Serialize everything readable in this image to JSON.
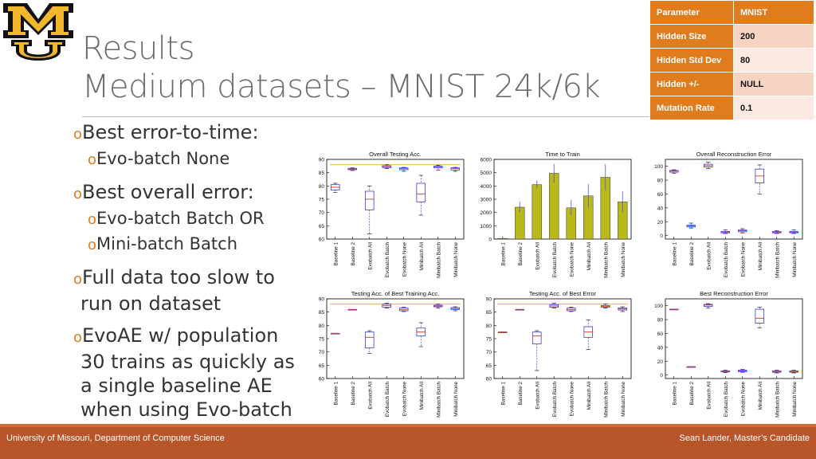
{
  "slide": {
    "title_line1": "Results",
    "title_line2": "Medium datasets – MNIST 24k/6k"
  },
  "param_table": [
    {
      "key": "Parameter",
      "value": "MNIST"
    },
    {
      "key": "Hidden Size",
      "value": "200"
    },
    {
      "key": "Hidden Std Dev",
      "value": "80"
    },
    {
      "key": "Hidden +/-",
      "value": "NULL"
    },
    {
      "key": "Mutation Rate",
      "value": "0.1"
    }
  ],
  "bullets": {
    "b1": "Best error-to-time:",
    "b1a": "Evo-batch None",
    "b2": "Best overall error:",
    "b2a": "Evo-batch Batch OR",
    "b2b": "Mini-batch Batch",
    "b3l1": "Full data too slow to",
    "b3l2": "run on dataset",
    "b4l1": "EvoAE w/ population",
    "b4l2": "30 trains as quickly as",
    "b4l3": "a single baseline AE",
    "b4l4": "when using Evo-batch"
  },
  "footer": {
    "left": "University of Missouri, Department of Computer Science",
    "right": "Sean Lander, Master’s Candidate"
  },
  "colors": {
    "accent": "#e07c1e",
    "footer": "#b8562a",
    "bar": "#b9b91c",
    "box": "#3b3bd6",
    "median": "#e0302a"
  },
  "chart_data": [
    {
      "type": "box",
      "title": "Overall Testing Acc.",
      "categories": [
        "Baseline 1",
        "Baseline 2",
        "Evobatch All",
        "Evobatch Batch",
        "Evobatch None",
        "Minibatch All",
        "Minibatch Batch",
        "Minibatch None"
      ],
      "ylim": [
        60,
        90
      ],
      "yticks": [
        60,
        65,
        70,
        75,
        80,
        85,
        90
      ],
      "reference_line": 88,
      "boxes": [
        {
          "min": 77.5,
          "q1": 78.5,
          "med": 79.5,
          "q3": 80.5,
          "max": 81
        },
        {
          "min": 85.8,
          "q1": 86.1,
          "med": 86.4,
          "q3": 86.6,
          "max": 86.8
        },
        {
          "min": 62,
          "q1": 71,
          "med": 75,
          "q3": 78,
          "max": 80
        },
        {
          "min": 86.5,
          "q1": 86.9,
          "med": 87.3,
          "q3": 87.6,
          "max": 88
        },
        {
          "min": 85.5,
          "q1": 86.1,
          "med": 86.5,
          "q3": 86.8,
          "max": 87
        },
        {
          "min": 69,
          "q1": 74,
          "med": 77,
          "q3": 81,
          "max": 84
        },
        {
          "min": 86,
          "q1": 86.8,
          "med": 87.2,
          "q3": 87.5,
          "max": 87.8
        },
        {
          "min": 85.5,
          "q1": 86,
          "med": 86.5,
          "q3": 86.8,
          "max": 87
        }
      ]
    },
    {
      "type": "bar",
      "title": "Time to Train",
      "categories": [
        "Baseline 1",
        "Baseline 2",
        "Evobatch All",
        "Evobatch Batch",
        "Evobatch None",
        "Minibatch All",
        "Minibatch Batch",
        "Minibatch None"
      ],
      "ylim": [
        0,
        6000
      ],
      "yticks": [
        0,
        1000,
        2000,
        3000,
        4000,
        5000,
        6000
      ],
      "values": [
        50,
        2400,
        4100,
        4950,
        2350,
        3250,
        4650,
        2800
      ],
      "errors": [
        20,
        400,
        300,
        700,
        600,
        900,
        1000,
        800
      ]
    },
    {
      "type": "box",
      "title": "Overall Reconstruction Error",
      "categories": [
        "Baseline 1",
        "Baseline 2",
        "Evobatch All",
        "Evobatch Batch",
        "Evobatch None",
        "Minibatch All",
        "Minibatch Batch",
        "Minibatch None"
      ],
      "ylim": [
        -5,
        110
      ],
      "yticks": [
        0,
        20,
        40,
        60,
        80,
        100
      ],
      "boxes": [
        {
          "min": 90,
          "q1": 91.5,
          "med": 93,
          "q3": 94,
          "max": 95
        },
        {
          "min": 11,
          "q1": 12.5,
          "med": 14,
          "q3": 15,
          "max": 18
        },
        {
          "min": 97,
          "q1": 99,
          "med": 101,
          "q3": 103,
          "max": 106
        },
        {
          "min": 3,
          "q1": 4,
          "med": 5,
          "q3": 6,
          "max": 8
        },
        {
          "min": 4,
          "q1": 5.5,
          "med": 7,
          "q3": 8,
          "max": 10
        },
        {
          "min": 60,
          "q1": 76,
          "med": 86,
          "q3": 96,
          "max": 102
        },
        {
          "min": 3,
          "q1": 4,
          "med": 5,
          "q3": 6,
          "max": 7
        },
        {
          "min": 3,
          "q1": 4,
          "med": 5,
          "q3": 6,
          "max": 8
        }
      ]
    },
    {
      "type": "box",
      "title": "Testing Acc. of Best Training Acc.",
      "categories": [
        "Baseline 1",
        "Baseline 2",
        "Evobatch All",
        "Evobatch Batch",
        "Evobatch None",
        "Minibatch All",
        "Minibatch Batch",
        "Minibatch None"
      ],
      "ylim": [
        60,
        90
      ],
      "yticks": [
        60,
        65,
        70,
        75,
        80,
        85,
        90
      ],
      "reference_line": 88,
      "boxes": [
        {
          "min": 77,
          "q1": 77,
          "med": 77,
          "q3": 77,
          "max": 77
        },
        {
          "min": 86,
          "q1": 86,
          "med": 86,
          "q3": 86,
          "max": 86
        },
        {
          "min": 69.5,
          "q1": 71.5,
          "med": 75.5,
          "q3": 77.5,
          "max": 78
        },
        {
          "min": 86.5,
          "q1": 86.8,
          "med": 87.5,
          "q3": 88,
          "max": 88.3
        },
        {
          "min": 85.2,
          "q1": 85.5,
          "med": 86,
          "q3": 86.5,
          "max": 86.8
        },
        {
          "min": 72,
          "q1": 76,
          "med": 77.5,
          "q3": 79,
          "max": 81
        },
        {
          "min": 86.5,
          "q1": 87,
          "med": 87.3,
          "q3": 87.6,
          "max": 88
        },
        {
          "min": 85.5,
          "q1": 86,
          "med": 86.3,
          "q3": 86.7,
          "max": 87
        }
      ]
    },
    {
      "type": "box",
      "title": "Testing Acc. of Best Error",
      "categories": [
        "Baseline 1",
        "Baseline 2",
        "Evobatch All",
        "Evobatch Batch",
        "Evobatch None",
        "Minibatch All",
        "Minibatch Batch",
        "Minibatch None"
      ],
      "ylim": [
        60,
        90
      ],
      "yticks": [
        60,
        65,
        70,
        75,
        80,
        85,
        90
      ],
      "reference_line": 88,
      "boxes": [
        {
          "min": 77.5,
          "q1": 77.5,
          "med": 77.5,
          "q3": 77.5,
          "max": 77.5
        },
        {
          "min": 86,
          "q1": 86,
          "med": 86,
          "q3": 86,
          "max": 86
        },
        {
          "min": 63,
          "q1": 73,
          "med": 76,
          "q3": 77.5,
          "max": 78
        },
        {
          "min": 86.5,
          "q1": 86.8,
          "med": 87.3,
          "q3": 87.8,
          "max": 88.3
        },
        {
          "min": 85.2,
          "q1": 85.5,
          "med": 86,
          "q3": 86.5,
          "max": 86.8
        },
        {
          "min": 71,
          "q1": 75.5,
          "med": 77.5,
          "q3": 79.5,
          "max": 82
        },
        {
          "min": 86.5,
          "q1": 86.8,
          "med": 87.2,
          "q3": 87.5,
          "max": 88
        },
        {
          "min": 85.2,
          "q1": 85.8,
          "med": 86.2,
          "q3": 86.6,
          "max": 87
        }
      ]
    },
    {
      "type": "box",
      "title": "Best Reconstruction Error",
      "categories": [
        "Baseline 1",
        "Baseline 2",
        "Evobatch All",
        "Evobatch Batch",
        "Evobatch None",
        "Minibatch All",
        "Minibatch Batch",
        "Minibatch None"
      ],
      "ylim": [
        -5,
        110
      ],
      "yticks": [
        0,
        20,
        40,
        60,
        80,
        100
      ],
      "boxes": [
        {
          "min": 95,
          "q1": 95,
          "med": 95,
          "q3": 95,
          "max": 95
        },
        {
          "min": 12,
          "q1": 12,
          "med": 12,
          "q3": 12,
          "max": 12
        },
        {
          "min": 97,
          "q1": 99,
          "med": 101,
          "q3": 102,
          "max": 103
        },
        {
          "min": 3.5,
          "q1": 4.5,
          "med": 5,
          "q3": 6,
          "max": 7
        },
        {
          "min": 4,
          "q1": 5,
          "med": 6,
          "q3": 7,
          "max": 8
        },
        {
          "min": 68,
          "q1": 75,
          "med": 82,
          "q3": 95,
          "max": 98
        },
        {
          "min": 3,
          "q1": 4,
          "med": 5,
          "q3": 6,
          "max": 7
        },
        {
          "min": 3,
          "q1": 4,
          "med": 5,
          "q3": 6,
          "max": 7
        }
      ]
    }
  ]
}
